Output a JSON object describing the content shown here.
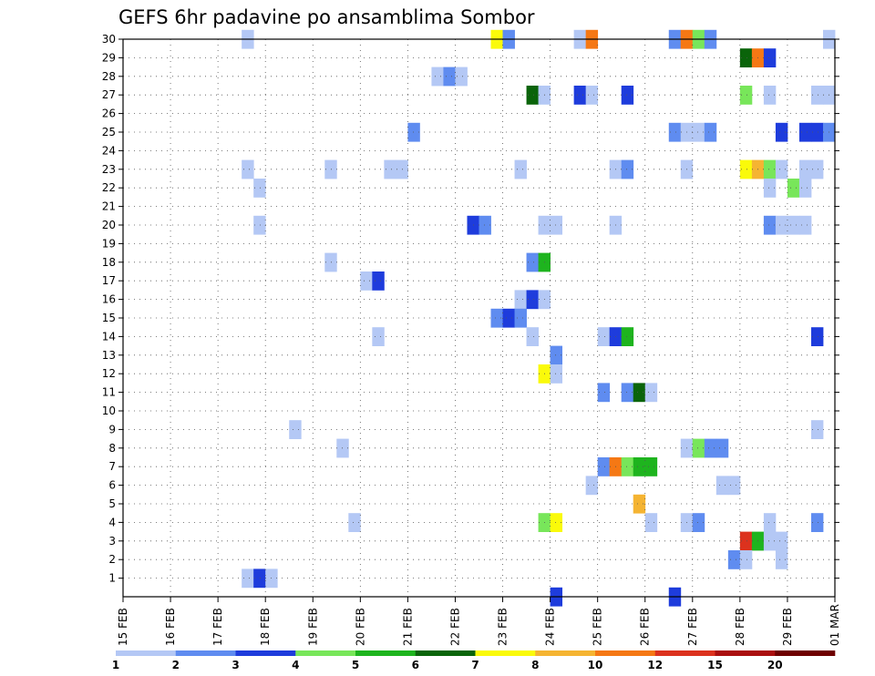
{
  "chart_data": {
    "type": "heatmap",
    "title": "GEFS 6hr padavine po ansamblima Sombor",
    "x_tick_labels": [
      "15 FEB",
      "16 FEB",
      "17 FEB",
      "18 FEB",
      "19 FEB",
      "20 FEB",
      "21 FEB",
      "22 FEB",
      "23 FEB",
      "24 FEB",
      "25 FEB",
      "26 FEB",
      "27 FEB",
      "28 FEB",
      "29 FEB",
      "01 MAR"
    ],
    "y_tick_labels": [
      "1",
      "2",
      "3",
      "4",
      "5",
      "6",
      "7",
      "8",
      "9",
      "10",
      "11",
      "12",
      "13",
      "14",
      "15",
      "16",
      "17",
      "18",
      "19",
      "20",
      "21",
      "22",
      "23",
      "24",
      "25",
      "26",
      "27",
      "28",
      "29",
      "30"
    ],
    "x_unit": "6-hour step (4 per day, step 0 = 15 FEB 00Z)",
    "ylim": [
      0,
      30
    ],
    "grid": true,
    "legend": {
      "position": "bottom",
      "thresholds": [
        "1",
        "2",
        "3",
        "4",
        "5",
        "6",
        "7",
        "8",
        "10",
        "12",
        "15",
        "20"
      ],
      "colors": [
        "#b4c8f5",
        "#5f8cf0",
        "#1e3cdc",
        "#78e65a",
        "#1eb41e",
        "#0a640a",
        "#fafa0a",
        "#f5b432",
        "#f57814",
        "#dc321e",
        "#aa0f0f",
        "#6e0000"
      ]
    },
    "cells": [
      [
        30,
        10,
        0
      ],
      [
        30,
        31,
        6
      ],
      [
        30,
        32,
        1
      ],
      [
        30,
        38,
        0
      ],
      [
        30,
        39,
        8
      ],
      [
        30,
        46,
        1
      ],
      [
        30,
        47,
        8
      ],
      [
        30,
        48,
        3
      ],
      [
        30,
        49,
        1
      ],
      [
        30,
        59,
        0
      ],
      [
        29,
        52,
        5
      ],
      [
        29,
        53,
        8
      ],
      [
        29,
        54,
        2
      ],
      [
        28,
        26,
        0
      ],
      [
        28,
        27,
        1
      ],
      [
        28,
        28,
        0
      ],
      [
        27,
        34,
        5
      ],
      [
        27,
        35,
        0
      ],
      [
        27,
        38,
        2
      ],
      [
        27,
        39,
        0
      ],
      [
        27,
        42,
        2
      ],
      [
        27,
        52,
        3
      ],
      [
        27,
        54,
        0
      ],
      [
        27,
        58,
        0
      ],
      [
        27,
        59,
        0
      ],
      [
        25,
        24,
        1
      ],
      [
        25,
        46,
        1
      ],
      [
        25,
        47,
        0
      ],
      [
        25,
        48,
        0
      ],
      [
        25,
        49,
        1
      ],
      [
        25,
        55,
        2
      ],
      [
        25,
        57,
        2
      ],
      [
        25,
        58,
        2
      ],
      [
        25,
        59,
        1
      ],
      [
        23,
        10,
        0
      ],
      [
        23,
        17,
        0
      ],
      [
        23,
        22,
        0
      ],
      [
        23,
        23,
        0
      ],
      [
        23,
        33,
        0
      ],
      [
        23,
        41,
        0
      ],
      [
        23,
        42,
        1
      ],
      [
        23,
        47,
        0
      ],
      [
        23,
        52,
        6
      ],
      [
        23,
        53,
        7
      ],
      [
        23,
        54,
        3
      ],
      [
        23,
        55,
        0
      ],
      [
        23,
        57,
        0
      ],
      [
        23,
        58,
        0
      ],
      [
        22,
        11,
        0
      ],
      [
        22,
        54,
        0
      ],
      [
        22,
        56,
        3
      ],
      [
        22,
        57,
        0
      ],
      [
        20,
        11,
        0
      ],
      [
        20,
        29,
        2
      ],
      [
        20,
        30,
        1
      ],
      [
        20,
        35,
        0
      ],
      [
        20,
        36,
        0
      ],
      [
        20,
        41,
        0
      ],
      [
        20,
        54,
        1
      ],
      [
        20,
        55,
        0
      ],
      [
        20,
        56,
        0
      ],
      [
        20,
        57,
        0
      ],
      [
        18,
        17,
        0
      ],
      [
        18,
        34,
        1
      ],
      [
        18,
        35,
        4
      ],
      [
        17,
        20,
        0
      ],
      [
        17,
        21,
        2
      ],
      [
        16,
        33,
        0
      ],
      [
        16,
        34,
        2
      ],
      [
        16,
        35,
        0
      ],
      [
        15,
        31,
        1
      ],
      [
        15,
        32,
        2
      ],
      [
        15,
        33,
        1
      ],
      [
        14,
        21,
        0
      ],
      [
        14,
        34,
        0
      ],
      [
        14,
        40,
        0
      ],
      [
        14,
        41,
        2
      ],
      [
        14,
        42,
        4
      ],
      [
        14,
        58,
        2
      ],
      [
        13,
        36,
        1
      ],
      [
        12,
        35,
        6
      ],
      [
        12,
        36,
        0
      ],
      [
        11,
        40,
        1
      ],
      [
        11,
        42,
        1
      ],
      [
        11,
        43,
        5
      ],
      [
        11,
        44,
        0
      ],
      [
        9,
        14,
        0
      ],
      [
        9,
        58,
        0
      ],
      [
        8,
        18,
        0
      ],
      [
        8,
        47,
        0
      ],
      [
        8,
        48,
        3
      ],
      [
        8,
        49,
        1
      ],
      [
        8,
        50,
        1
      ],
      [
        7,
        40,
        1
      ],
      [
        7,
        41,
        8
      ],
      [
        7,
        42,
        3
      ],
      [
        7,
        43,
        4
      ],
      [
        7,
        44,
        4
      ],
      [
        6,
        39,
        0
      ],
      [
        6,
        50,
        0
      ],
      [
        6,
        51,
        0
      ],
      [
        5,
        43,
        7
      ],
      [
        4,
        19,
        0
      ],
      [
        4,
        35,
        3
      ],
      [
        4,
        36,
        6
      ],
      [
        4,
        44,
        0
      ],
      [
        4,
        47,
        0
      ],
      [
        4,
        48,
        1
      ],
      [
        4,
        54,
        0
      ],
      [
        4,
        58,
        1
      ],
      [
        3,
        52,
        9
      ],
      [
        3,
        53,
        4
      ],
      [
        3,
        54,
        0
      ],
      [
        3,
        55,
        0
      ],
      [
        2,
        51,
        1
      ],
      [
        2,
        52,
        0
      ],
      [
        2,
        55,
        0
      ],
      [
        1,
        10,
        0
      ],
      [
        1,
        11,
        2
      ],
      [
        1,
        12,
        0
      ],
      [
        0,
        36,
        2
      ],
      [
        0,
        46,
        2
      ]
    ]
  }
}
